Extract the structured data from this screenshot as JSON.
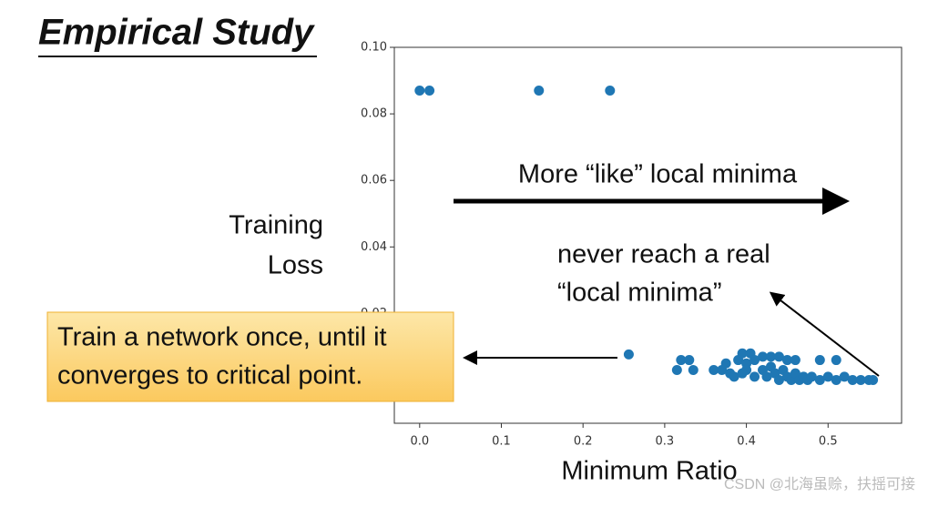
{
  "title": "Empirical Study",
  "chart_data": {
    "type": "scatter",
    "ylabel": [
      "Training",
      "Loss"
    ],
    "xlabel": "Minimum Ratio",
    "color": "#1f77b4",
    "xlim": [
      -0.031,
      0.59
    ],
    "ylim": [
      -0.013,
      0.1
    ],
    "xticks": [
      {
        "value": 0,
        "label": "0.0"
      },
      0.1,
      0.2,
      0.3,
      0.4,
      0.5
    ],
    "yticks": [
      0.02,
      0.04,
      0.06,
      0.08,
      {
        "value": 0.1,
        "label": "0.10"
      }
    ],
    "x": [
      0.0,
      0.012,
      0.146,
      0.233,
      0.256,
      0.32,
      0.33,
      0.315,
      0.335,
      0.36,
      0.37,
      0.375,
      0.38,
      0.39,
      0.395,
      0.405,
      0.4,
      0.41,
      0.42,
      0.43,
      0.44,
      0.45,
      0.46,
      0.49,
      0.51,
      0.4,
      0.41,
      0.42,
      0.425,
      0.43,
      0.435,
      0.44,
      0.445,
      0.45,
      0.455,
      0.46,
      0.465,
      0.47,
      0.475,
      0.48,
      0.49,
      0.5,
      0.51,
      0.52,
      0.53,
      0.54,
      0.55,
      0.555,
      0.385,
      0.395
    ],
    "values": [
      0.087,
      0.087,
      0.087,
      0.087,
      0.0077,
      0.006,
      0.006,
      0.003,
      0.003,
      0.003,
      0.003,
      0.005,
      0.002,
      0.006,
      0.008,
      0.008,
      0.005,
      0.006,
      0.007,
      0.007,
      0.007,
      0.006,
      0.006,
      0.006,
      0.006,
      0.003,
      0.001,
      0.003,
      0.001,
      0.004,
      0.002,
      0.0,
      0.003,
      0.001,
      0.0,
      0.002,
      0.0,
      0.001,
      0.0,
      0.001,
      0.0,
      0.001,
      0.0,
      0.001,
      0.0,
      0.0,
      0.0,
      0.0,
      0.001,
      0.002
    ]
  },
  "annotations": {
    "arrow_text": "More “like” local minima",
    "never": [
      "never reach a real",
      "“local minima”"
    ],
    "box": [
      "Train a network once, until it",
      "converges to critical point."
    ]
  },
  "watermark": "CSDN @北海虽赊，扶摇可接"
}
